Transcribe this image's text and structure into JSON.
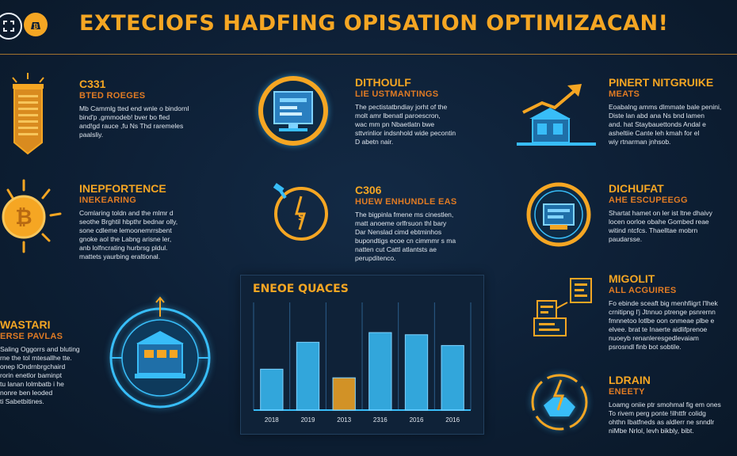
{
  "header": {
    "title": "EXTECIOFS HADFING OPISATION  OPTIMIZACAN!",
    "left_icons": [
      "scan-icon",
      "bitcoin-bag-icon"
    ]
  },
  "blocks": [
    {
      "id": "b1",
      "h1": "C331",
      "h2": "BTED ROEGES",
      "body": "Mb Cammlg tted end wnle o bindornl\nbind'p ,gmmodeb! bver bo fled\nand!gd rauce ,fu Ns Thd raremeles\npaalsliy.",
      "icon": "banner-icon"
    },
    {
      "id": "b2",
      "h1": "DITHOULF",
      "h2": "LIE USTMANTINGS",
      "body": "The pectistatbndiay jorht of the\nmolt amr lbenatl paroescron,\nwac mm pn Nbaetlatn bwe\nsttvrinlior indsnhold wide pecontin\nD abetn nair.",
      "icon": "monitor-icon"
    },
    {
      "id": "b3",
      "h1": "PINERT NITGRUIKE",
      "h2": "MEATS",
      "body": "Eoabalng amms dlmmate bale penini,\nDiste lan abd ana Ns bnd lamen\nand. hat Staybauettonds Andal e\nasheltiie Cante leh kmah for el\nwiy rtnarman jnhsob.",
      "icon": "growth-house-icon"
    },
    {
      "id": "b4",
      "h1": "INEPFORTENCE",
      "h2": "INEKEARING",
      "body": "Comlaring toldn and the mlmr d\nseothe Brghtil hbpthr bednar olly,\nsone cdleme lemoonemrrsbent\ngnoke aol the Labng arisne ler,\nanb lolfncrating hurbrsg pldul.\nmattets yaurbing eraltional.",
      "icon": "bitcoin-sun-icon"
    },
    {
      "id": "b5",
      "h1": "C306",
      "h2": "HUEW ENHUNDLE EAS",
      "body": "The bigpinla fmene ms cinestlen,\nmatt anoeme orlfrsuon thl bary\nDar Nenslad cimd ebtminhos\nbupondtigs ecoe cn cimmmr s ma\nnatten cut Cattl atlantsts ae\nperupditenco.",
      "icon": "gauge-icon"
    },
    {
      "id": "b6",
      "h1": "DICHUFAT",
      "h2": "AHE ESCUPEEGG",
      "body": "Shartat hamet on ler ist ltne dhaivy\nlocen oorloe obahe Gombed reae\nwitind ntcfcs. Thaelltae mobrn\npaudarsse.",
      "icon": "device-circle-icon"
    },
    {
      "id": "b7",
      "h1": "WASTARI",
      "h2": "ERSE PAVLAS",
      "body": "Saling Oggorrs and bluting\nrne the tol mtesallhe tte.\nonep lOndrnbrgchaird\nrorin enetlor baminpt\ntu lanan lolmbatb i he\nnonre ben leoded\nti Sabetbitines.",
      "icon": "target-bank-icon"
    },
    {
      "id": "b8",
      "h1": "MIGOLIT",
      "h2": "ALL ACGUIRES",
      "body": "Fo ebinde sceaft big menhfiigrt l'lhek\ncrnitipng l'j Jtnnuo ptrenge psnrernn\nfmnnetoo lotlbe oon onmeae plbe e\nelvee. brat te Inaerte aidlifprenoe\nnuoeyb renanleresgedlevaiam\npsrosndl finb bot sobtile.",
      "icon": "documents-icon"
    },
    {
      "id": "b9",
      "h1": "LDRAIN",
      "h2": "ENEETY",
      "body": "Loamg oniie ptr smohmal fig em ones\nTo rivem perg ponte !ilhttfr colidg\nohthn Ibatfneds as aldlerr ne snndlr\nniMbe Nrlol, levh bikbly, bibt.",
      "icon": "hand-bolt-icon"
    }
  ],
  "chart_data": {
    "type": "bar",
    "title": "ENEOE QUACES",
    "categories": [
      "2018",
      "2019",
      "2013",
      "2316",
      "2016",
      "2016"
    ],
    "values": [
      38,
      63,
      30,
      72,
      70,
      60
    ],
    "colors": [
      "#38bdf8",
      "#38bdf8",
      "#f5a623",
      "#38bdf8",
      "#38bdf8",
      "#38bdf8"
    ],
    "ylim": [
      0,
      100
    ]
  }
}
